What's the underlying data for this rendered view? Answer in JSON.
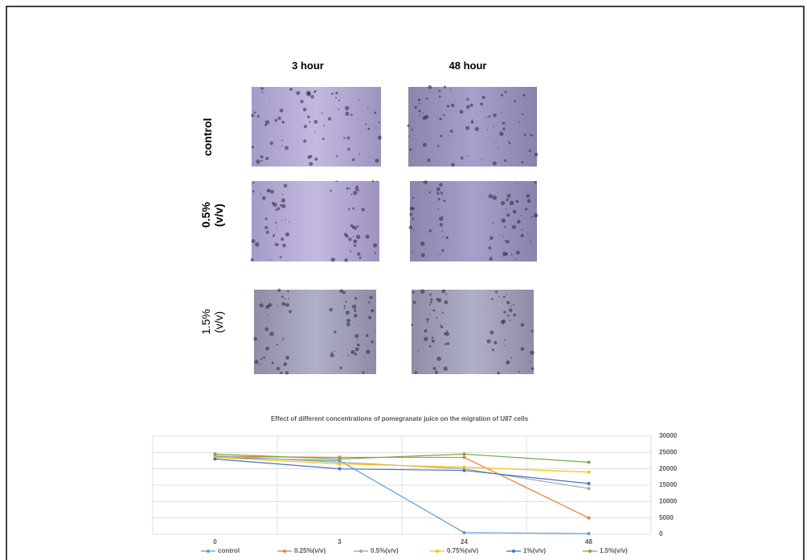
{
  "figure": {
    "column_headers": [
      "3 hour",
      "48 hour"
    ],
    "row_labels": [
      "control",
      "0.5% (v/v)",
      "1.5% (v/v)"
    ]
  },
  "chart_data": {
    "type": "line",
    "title": "Effect of different concentrations of pomegranate juice on the migration  of U87 cells",
    "categories": [
      "0",
      "3",
      "24",
      "48"
    ],
    "ylim": [
      0,
      30000
    ],
    "yticks": [
      0,
      5000,
      10000,
      15000,
      20000,
      25000,
      30000
    ],
    "y_axis_side": "right",
    "grid": true,
    "legend": "bottom",
    "series": [
      {
        "name": "control",
        "color": "#5b9bd5",
        "values": [
          23500,
          22500,
          500,
          200
        ]
      },
      {
        "name": "0.25%(v/v)",
        "color": "#ed7d31",
        "values": [
          23800,
          23500,
          23500,
          5000
        ]
      },
      {
        "name": "0.5%(v/v)",
        "color": "#a5a5a5",
        "values": [
          24000,
          22000,
          20000,
          14000
        ]
      },
      {
        "name": "0.75%(v/v)",
        "color": "#ffc000",
        "values": [
          23500,
          21500,
          20500,
          19000
        ]
      },
      {
        "name": "1%(v/v)",
        "color": "#4472c4",
        "values": [
          23000,
          20000,
          19500,
          15500
        ]
      },
      {
        "name": "1.5%(v/v)",
        "color": "#70ad47",
        "values": [
          24500,
          23000,
          24500,
          22000
        ]
      }
    ]
  }
}
